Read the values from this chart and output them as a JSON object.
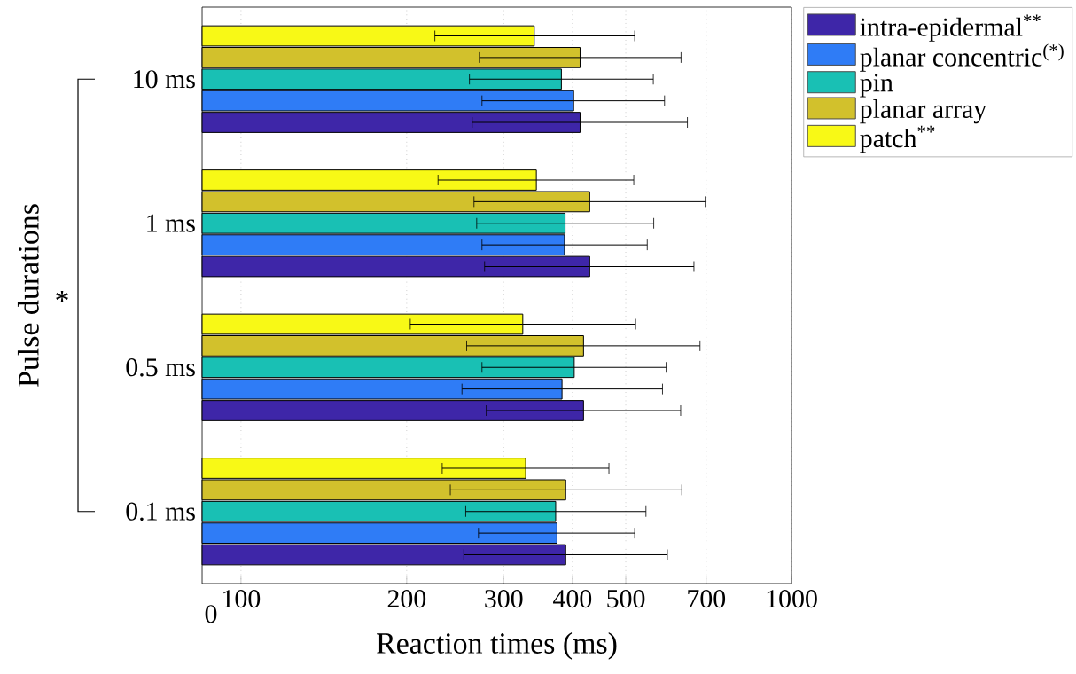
{
  "chart_data": {
    "type": "bar",
    "orientation": "horizontal",
    "log": "x",
    "xlabel": "Reaction times (ms)",
    "ylabel": "Pulse durations",
    "categories": [
      "10 ms",
      "1 ms",
      "0.5 ms",
      "0.1 ms"
    ],
    "series": [
      {
        "name": "intra-epidermal$^{**}$",
        "color": "#3e26a8",
        "values": [
          413,
          430,
          419,
          389
        ],
        "errors": [
          [
            263,
            647
          ],
          [
            277,
            665
          ],
          [
            279,
            629
          ],
          [
            254,
            595
          ]
        ]
      },
      {
        "name": "planar concentric$^{(*)}$",
        "color": "#2f7cf6",
        "values": [
          402,
          387,
          383,
          375
        ],
        "errors": [
          [
            274,
            588
          ],
          [
            274,
            547
          ],
          [
            252,
            583
          ],
          [
            270,
            519
          ]
        ]
      },
      {
        "name": "pin",
        "color": "#19c0b4",
        "values": [
          382,
          388,
          403,
          373
        ],
        "errors": [
          [
            260,
            561
          ],
          [
            268,
            562
          ],
          [
            274,
            592
          ],
          [
            256,
            544
          ]
        ]
      },
      {
        "name": "planar array",
        "color": "#d2c12c",
        "values": [
          413,
          430,
          419,
          389
        ],
        "errors": [
          [
            271,
            630
          ],
          [
            265,
            697
          ],
          [
            257,
            682
          ],
          [
            240,
            632
          ]
        ]
      },
      {
        "name": "patch$^{**}$",
        "color": "#f8f916",
        "values": [
          341,
          344,
          325,
          329
        ],
        "errors": [
          [
            225,
            519
          ],
          [
            228,
            517
          ],
          [
            203,
            521
          ],
          [
            232,
            466
          ]
        ]
      }
    ],
    "xlim": [
      85,
      1000
    ],
    "xticks": [
      100,
      200,
      300,
      400,
      500,
      700,
      1000
    ],
    "grid": "x",
    "legend": "top right",
    "annotations": [
      "*",
      "0"
    ]
  }
}
